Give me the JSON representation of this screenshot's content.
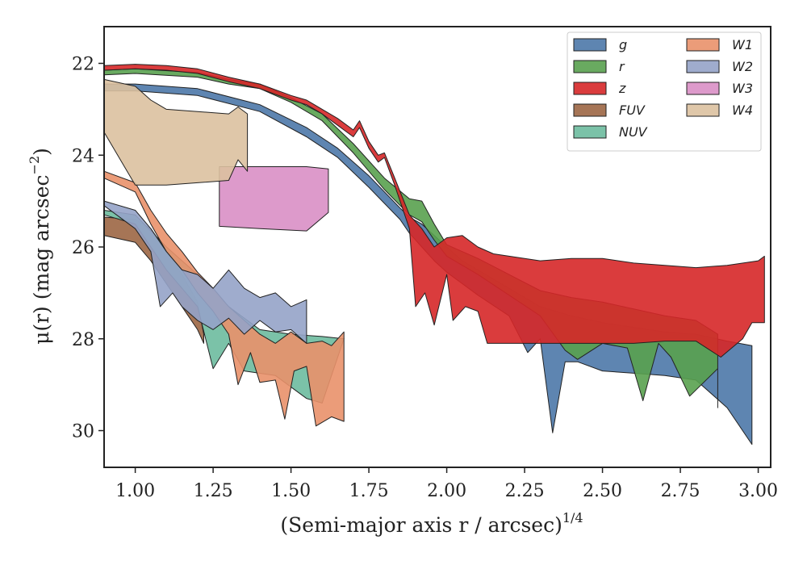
{
  "chart_data": {
    "type": "area",
    "xlabel": "(Semi-major axis r / arcsec)",
    "xlabel_sup": "1/4",
    "ylabel": "μ(r) (mag arcsec",
    "ylabel_sup": "−2",
    "ylabel_tail": ")",
    "xlim": [
      0.9,
      3.04
    ],
    "ylim": [
      30.8,
      21.2
    ],
    "y_inverted": true,
    "xticks": [
      1.0,
      1.25,
      1.5,
      1.75,
      2.0,
      2.25,
      2.5,
      2.75,
      3.0
    ],
    "xtick_labels": [
      "1.00",
      "1.25",
      "1.50",
      "1.75",
      "2.00",
      "2.25",
      "2.50",
      "2.75",
      "3.00"
    ],
    "yticks": [
      22,
      24,
      26,
      28,
      30
    ],
    "ytick_labels": [
      "22",
      "24",
      "26",
      "28",
      "30"
    ],
    "grid": false,
    "legend": {
      "placement": "top-right",
      "columns": 2
    },
    "series": [
      {
        "name": "g",
        "color": "#4c78a8",
        "upper": [
          [
            0.9,
            22.45
          ],
          [
            1.0,
            22.45
          ],
          [
            1.2,
            22.55
          ],
          [
            1.4,
            22.9
          ],
          [
            1.55,
            23.4
          ],
          [
            1.65,
            23.85
          ],
          [
            1.75,
            24.45
          ],
          [
            1.85,
            25.15
          ],
          [
            1.88,
            25.35
          ],
          [
            1.92,
            25.5
          ],
          [
            1.96,
            25.75
          ],
          [
            2.0,
            26.0
          ],
          [
            2.05,
            26.3
          ],
          [
            2.1,
            26.5
          ],
          [
            2.2,
            26.9
          ],
          [
            2.3,
            27.3
          ],
          [
            2.4,
            27.5
          ],
          [
            2.5,
            27.65
          ],
          [
            2.6,
            27.75
          ],
          [
            2.7,
            27.85
          ],
          [
            2.8,
            27.9
          ],
          [
            2.9,
            28.05
          ],
          [
            2.98,
            28.15
          ]
        ],
        "lower": [
          [
            0.9,
            22.6
          ],
          [
            1.0,
            22.6
          ],
          [
            1.2,
            22.7
          ],
          [
            1.4,
            23.05
          ],
          [
            1.55,
            23.6
          ],
          [
            1.65,
            24.05
          ],
          [
            1.75,
            24.7
          ],
          [
            1.85,
            25.4
          ],
          [
            1.88,
            25.7
          ],
          [
            1.92,
            26.0
          ],
          [
            1.96,
            26.3
          ],
          [
            2.0,
            26.55
          ],
          [
            2.05,
            26.8
          ],
          [
            2.1,
            27.05
          ],
          [
            2.2,
            27.5
          ],
          [
            2.26,
            28.3
          ],
          [
            2.3,
            28.0
          ],
          [
            2.34,
            30.05
          ],
          [
            2.38,
            28.5
          ],
          [
            2.42,
            28.5
          ],
          [
            2.5,
            28.7
          ],
          [
            2.6,
            28.75
          ],
          [
            2.7,
            28.8
          ],
          [
            2.8,
            28.9
          ],
          [
            2.9,
            29.5
          ],
          [
            2.98,
            30.3
          ]
        ]
      },
      {
        "name": "r",
        "color": "#59a14f",
        "upper": [
          [
            0.9,
            22.15
          ],
          [
            1.0,
            22.12
          ],
          [
            1.2,
            22.2
          ],
          [
            1.3,
            22.35
          ],
          [
            1.4,
            22.45
          ],
          [
            1.5,
            22.75
          ],
          [
            1.6,
            23.1
          ],
          [
            1.7,
            23.75
          ],
          [
            1.8,
            24.5
          ],
          [
            1.88,
            24.95
          ],
          [
            1.92,
            25.0
          ],
          [
            1.96,
            25.5
          ],
          [
            2.0,
            25.95
          ],
          [
            2.05,
            26.1
          ],
          [
            2.1,
            26.25
          ],
          [
            2.2,
            26.6
          ],
          [
            2.3,
            26.95
          ],
          [
            2.4,
            27.1
          ],
          [
            2.5,
            27.2
          ],
          [
            2.6,
            27.35
          ],
          [
            2.7,
            27.5
          ],
          [
            2.8,
            27.6
          ],
          [
            2.87,
            27.9
          ]
        ],
        "lower": [
          [
            0.9,
            22.25
          ],
          [
            1.0,
            22.22
          ],
          [
            1.2,
            22.3
          ],
          [
            1.3,
            22.45
          ],
          [
            1.4,
            22.55
          ],
          [
            1.5,
            22.85
          ],
          [
            1.6,
            23.25
          ],
          [
            1.7,
            23.95
          ],
          [
            1.8,
            24.75
          ],
          [
            1.88,
            25.3
          ],
          [
            1.92,
            25.45
          ],
          [
            1.96,
            25.85
          ],
          [
            2.0,
            26.2
          ],
          [
            2.1,
            26.6
          ],
          [
            2.2,
            27.05
          ],
          [
            2.3,
            27.5
          ],
          [
            2.38,
            28.25
          ],
          [
            2.42,
            28.45
          ],
          [
            2.5,
            28.1
          ],
          [
            2.58,
            28.2
          ],
          [
            2.63,
            29.35
          ],
          [
            2.68,
            28.1
          ],
          [
            2.72,
            28.4
          ],
          [
            2.78,
            29.25
          ],
          [
            2.87,
            28.65
          ],
          [
            2.87,
            29.5
          ]
        ]
      },
      {
        "name": "z",
        "color": "#d62728",
        "upper": [
          [
            0.9,
            22.05
          ],
          [
            1.0,
            22.02
          ],
          [
            1.1,
            22.05
          ],
          [
            1.2,
            22.12
          ],
          [
            1.3,
            22.3
          ],
          [
            1.4,
            22.45
          ],
          [
            1.5,
            22.7
          ],
          [
            1.55,
            22.8
          ],
          [
            1.6,
            23.0
          ],
          [
            1.65,
            23.2
          ],
          [
            1.7,
            23.45
          ],
          [
            1.72,
            23.25
          ],
          [
            1.75,
            23.7
          ],
          [
            1.78,
            24.0
          ],
          [
            1.8,
            23.95
          ],
          [
            1.83,
            24.45
          ],
          [
            1.88,
            25.3
          ],
          [
            1.92,
            25.6
          ],
          [
            1.96,
            26.0
          ],
          [
            2.0,
            25.8
          ],
          [
            2.05,
            25.75
          ],
          [
            2.1,
            26.0
          ],
          [
            2.15,
            26.15
          ],
          [
            2.2,
            26.2
          ],
          [
            2.3,
            26.3
          ],
          [
            2.4,
            26.25
          ],
          [
            2.5,
            26.25
          ],
          [
            2.6,
            26.35
          ],
          [
            2.7,
            26.4
          ],
          [
            2.8,
            26.45
          ],
          [
            2.9,
            26.4
          ],
          [
            3.0,
            26.3
          ],
          [
            3.02,
            26.2
          ]
        ],
        "lower": [
          [
            0.9,
            22.15
          ],
          [
            1.0,
            22.12
          ],
          [
            1.1,
            22.15
          ],
          [
            1.2,
            22.22
          ],
          [
            1.3,
            22.4
          ],
          [
            1.4,
            22.55
          ],
          [
            1.5,
            22.8
          ],
          [
            1.55,
            22.9
          ],
          [
            1.6,
            23.1
          ],
          [
            1.65,
            23.35
          ],
          [
            1.7,
            23.6
          ],
          [
            1.72,
            23.4
          ],
          [
            1.75,
            23.85
          ],
          [
            1.78,
            24.15
          ],
          [
            1.8,
            24.05
          ],
          [
            1.83,
            24.6
          ],
          [
            1.88,
            25.6
          ],
          [
            1.9,
            27.3
          ],
          [
            1.93,
            27.0
          ],
          [
            1.96,
            27.7
          ],
          [
            2.0,
            26.6
          ],
          [
            2.02,
            27.6
          ],
          [
            2.06,
            27.3
          ],
          [
            2.1,
            27.4
          ],
          [
            2.13,
            28.1
          ],
          [
            2.2,
            28.1
          ],
          [
            2.3,
            28.1
          ],
          [
            2.4,
            28.1
          ],
          [
            2.5,
            28.1
          ],
          [
            2.6,
            28.1
          ],
          [
            2.7,
            28.05
          ],
          [
            2.8,
            28.05
          ],
          [
            2.88,
            28.4
          ],
          [
            2.95,
            28.0
          ],
          [
            2.98,
            27.65
          ],
          [
            3.02,
            27.65
          ]
        ]
      },
      {
        "name": "FUV",
        "color": "#9c6644",
        "upper": [
          [
            0.9,
            25.35
          ],
          [
            1.0,
            25.4
          ],
          [
            1.05,
            25.6
          ],
          [
            1.1,
            26.1
          ],
          [
            1.15,
            26.6
          ],
          [
            1.2,
            27.2
          ],
          [
            1.22,
            27.9
          ]
        ],
        "lower": [
          [
            0.9,
            25.75
          ],
          [
            1.0,
            25.9
          ],
          [
            1.05,
            26.3
          ],
          [
            1.1,
            26.8
          ],
          [
            1.15,
            27.3
          ],
          [
            1.2,
            27.8
          ],
          [
            1.22,
            28.1
          ]
        ]
      },
      {
        "name": "NUV",
        "color": "#6dbb9f",
        "upper": [
          [
            0.9,
            25.2
          ],
          [
            1.0,
            25.3
          ],
          [
            1.1,
            26.0
          ],
          [
            1.2,
            26.6
          ],
          [
            1.3,
            27.3
          ],
          [
            1.4,
            27.8
          ],
          [
            1.5,
            27.9
          ],
          [
            1.6,
            27.95
          ],
          [
            1.67,
            28.0
          ]
        ],
        "lower": [
          [
            0.9,
            25.3
          ],
          [
            1.0,
            25.5
          ],
          [
            1.1,
            26.5
          ],
          [
            1.2,
            27.3
          ],
          [
            1.25,
            28.65
          ],
          [
            1.3,
            28.1
          ],
          [
            1.35,
            28.7
          ],
          [
            1.45,
            28.8
          ],
          [
            1.55,
            29.3
          ],
          [
            1.6,
            29.4
          ]
        ]
      },
      {
        "name": "W1",
        "color": "#e9916a",
        "upper": [
          [
            0.9,
            24.35
          ],
          [
            1.0,
            24.6
          ],
          [
            1.05,
            25.2
          ],
          [
            1.1,
            25.7
          ],
          [
            1.15,
            26.1
          ],
          [
            1.2,
            26.55
          ],
          [
            1.25,
            26.9
          ],
          [
            1.3,
            27.3
          ],
          [
            1.35,
            27.6
          ],
          [
            1.4,
            27.9
          ],
          [
            1.45,
            28.1
          ],
          [
            1.5,
            27.85
          ],
          [
            1.55,
            28.1
          ],
          [
            1.6,
            28.05
          ],
          [
            1.63,
            28.15
          ],
          [
            1.67,
            27.85
          ]
        ],
        "lower": [
          [
            0.9,
            24.5
          ],
          [
            1.0,
            24.8
          ],
          [
            1.05,
            25.5
          ],
          [
            1.1,
            26.1
          ],
          [
            1.15,
            26.5
          ],
          [
            1.2,
            27.0
          ],
          [
            1.25,
            27.4
          ],
          [
            1.3,
            27.9
          ],
          [
            1.33,
            29.0
          ],
          [
            1.37,
            28.3
          ],
          [
            1.4,
            28.95
          ],
          [
            1.45,
            28.9
          ],
          [
            1.48,
            29.75
          ],
          [
            1.51,
            28.7
          ],
          [
            1.55,
            28.6
          ],
          [
            1.58,
            29.9
          ],
          [
            1.63,
            29.7
          ],
          [
            1.67,
            29.8
          ]
        ]
      },
      {
        "name": "W2",
        "color": "#95a3c8",
        "upper": [
          [
            0.9,
            25.0
          ],
          [
            1.0,
            25.2
          ],
          [
            1.05,
            25.6
          ],
          [
            1.1,
            26.1
          ],
          [
            1.15,
            26.5
          ],
          [
            1.2,
            26.6
          ],
          [
            1.25,
            26.9
          ],
          [
            1.3,
            26.5
          ],
          [
            1.35,
            26.9
          ],
          [
            1.4,
            27.1
          ],
          [
            1.45,
            27.0
          ],
          [
            1.5,
            27.3
          ],
          [
            1.55,
            27.15
          ]
        ],
        "lower": [
          [
            0.9,
            25.1
          ],
          [
            1.0,
            25.6
          ],
          [
            1.05,
            26.1
          ],
          [
            1.08,
            27.3
          ],
          [
            1.12,
            27.0
          ],
          [
            1.15,
            27.3
          ],
          [
            1.2,
            27.6
          ],
          [
            1.25,
            27.8
          ],
          [
            1.3,
            27.55
          ],
          [
            1.35,
            27.9
          ],
          [
            1.4,
            27.6
          ],
          [
            1.45,
            27.85
          ],
          [
            1.5,
            27.8
          ],
          [
            1.55,
            28.1
          ]
        ]
      },
      {
        "name": "W3",
        "color": "#d98fc5",
        "upper": [
          [
            1.27,
            24.25
          ],
          [
            1.45,
            24.25
          ],
          [
            1.55,
            24.25
          ],
          [
            1.62,
            24.3
          ]
        ],
        "lower": [
          [
            1.27,
            25.55
          ],
          [
            1.4,
            25.6
          ],
          [
            1.55,
            25.65
          ],
          [
            1.62,
            25.25
          ]
        ]
      },
      {
        "name": "W4",
        "color": "#dcc1a0",
        "upper": [
          [
            0.9,
            22.35
          ],
          [
            1.0,
            22.5
          ],
          [
            1.05,
            22.8
          ],
          [
            1.1,
            23.0
          ],
          [
            1.2,
            23.05
          ],
          [
            1.3,
            23.1
          ],
          [
            1.33,
            22.95
          ],
          [
            1.36,
            23.1
          ]
        ],
        "lower": [
          [
            0.9,
            23.5
          ],
          [
            1.0,
            24.65
          ],
          [
            1.1,
            24.65
          ],
          [
            1.2,
            24.6
          ],
          [
            1.3,
            24.55
          ],
          [
            1.33,
            24.1
          ],
          [
            1.36,
            24.35
          ]
        ]
      }
    ]
  }
}
